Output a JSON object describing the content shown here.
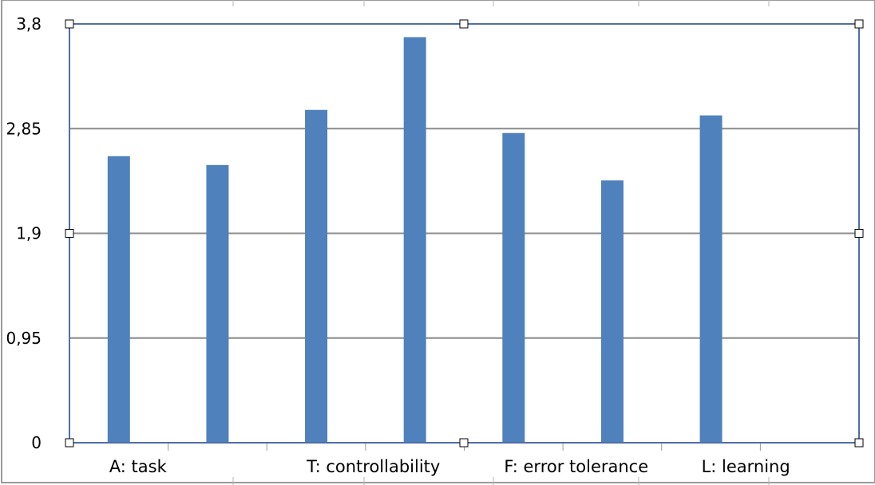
{
  "chart_data": {
    "type": "bar",
    "title": "",
    "xlabel": "",
    "ylabel": "",
    "ylim": [
      0,
      3.8
    ],
    "y_ticks": [
      "0",
      "0,95",
      "1,9",
      "2,85",
      "3,8"
    ],
    "y_tick_values": [
      0,
      0.95,
      1.9,
      2.85,
      3.8
    ],
    "x_labels": [
      "A: task",
      "T: controllability",
      "F: error tolerance",
      "L: learning"
    ],
    "values": [
      2.6,
      2.52,
      3.02,
      3.68,
      2.81,
      2.38,
      2.97
    ],
    "grid": true,
    "legend": "none",
    "bar_color": "#4f81bd",
    "grid_color": "#8c8c8c",
    "selection_color": "#4f6fa8"
  }
}
